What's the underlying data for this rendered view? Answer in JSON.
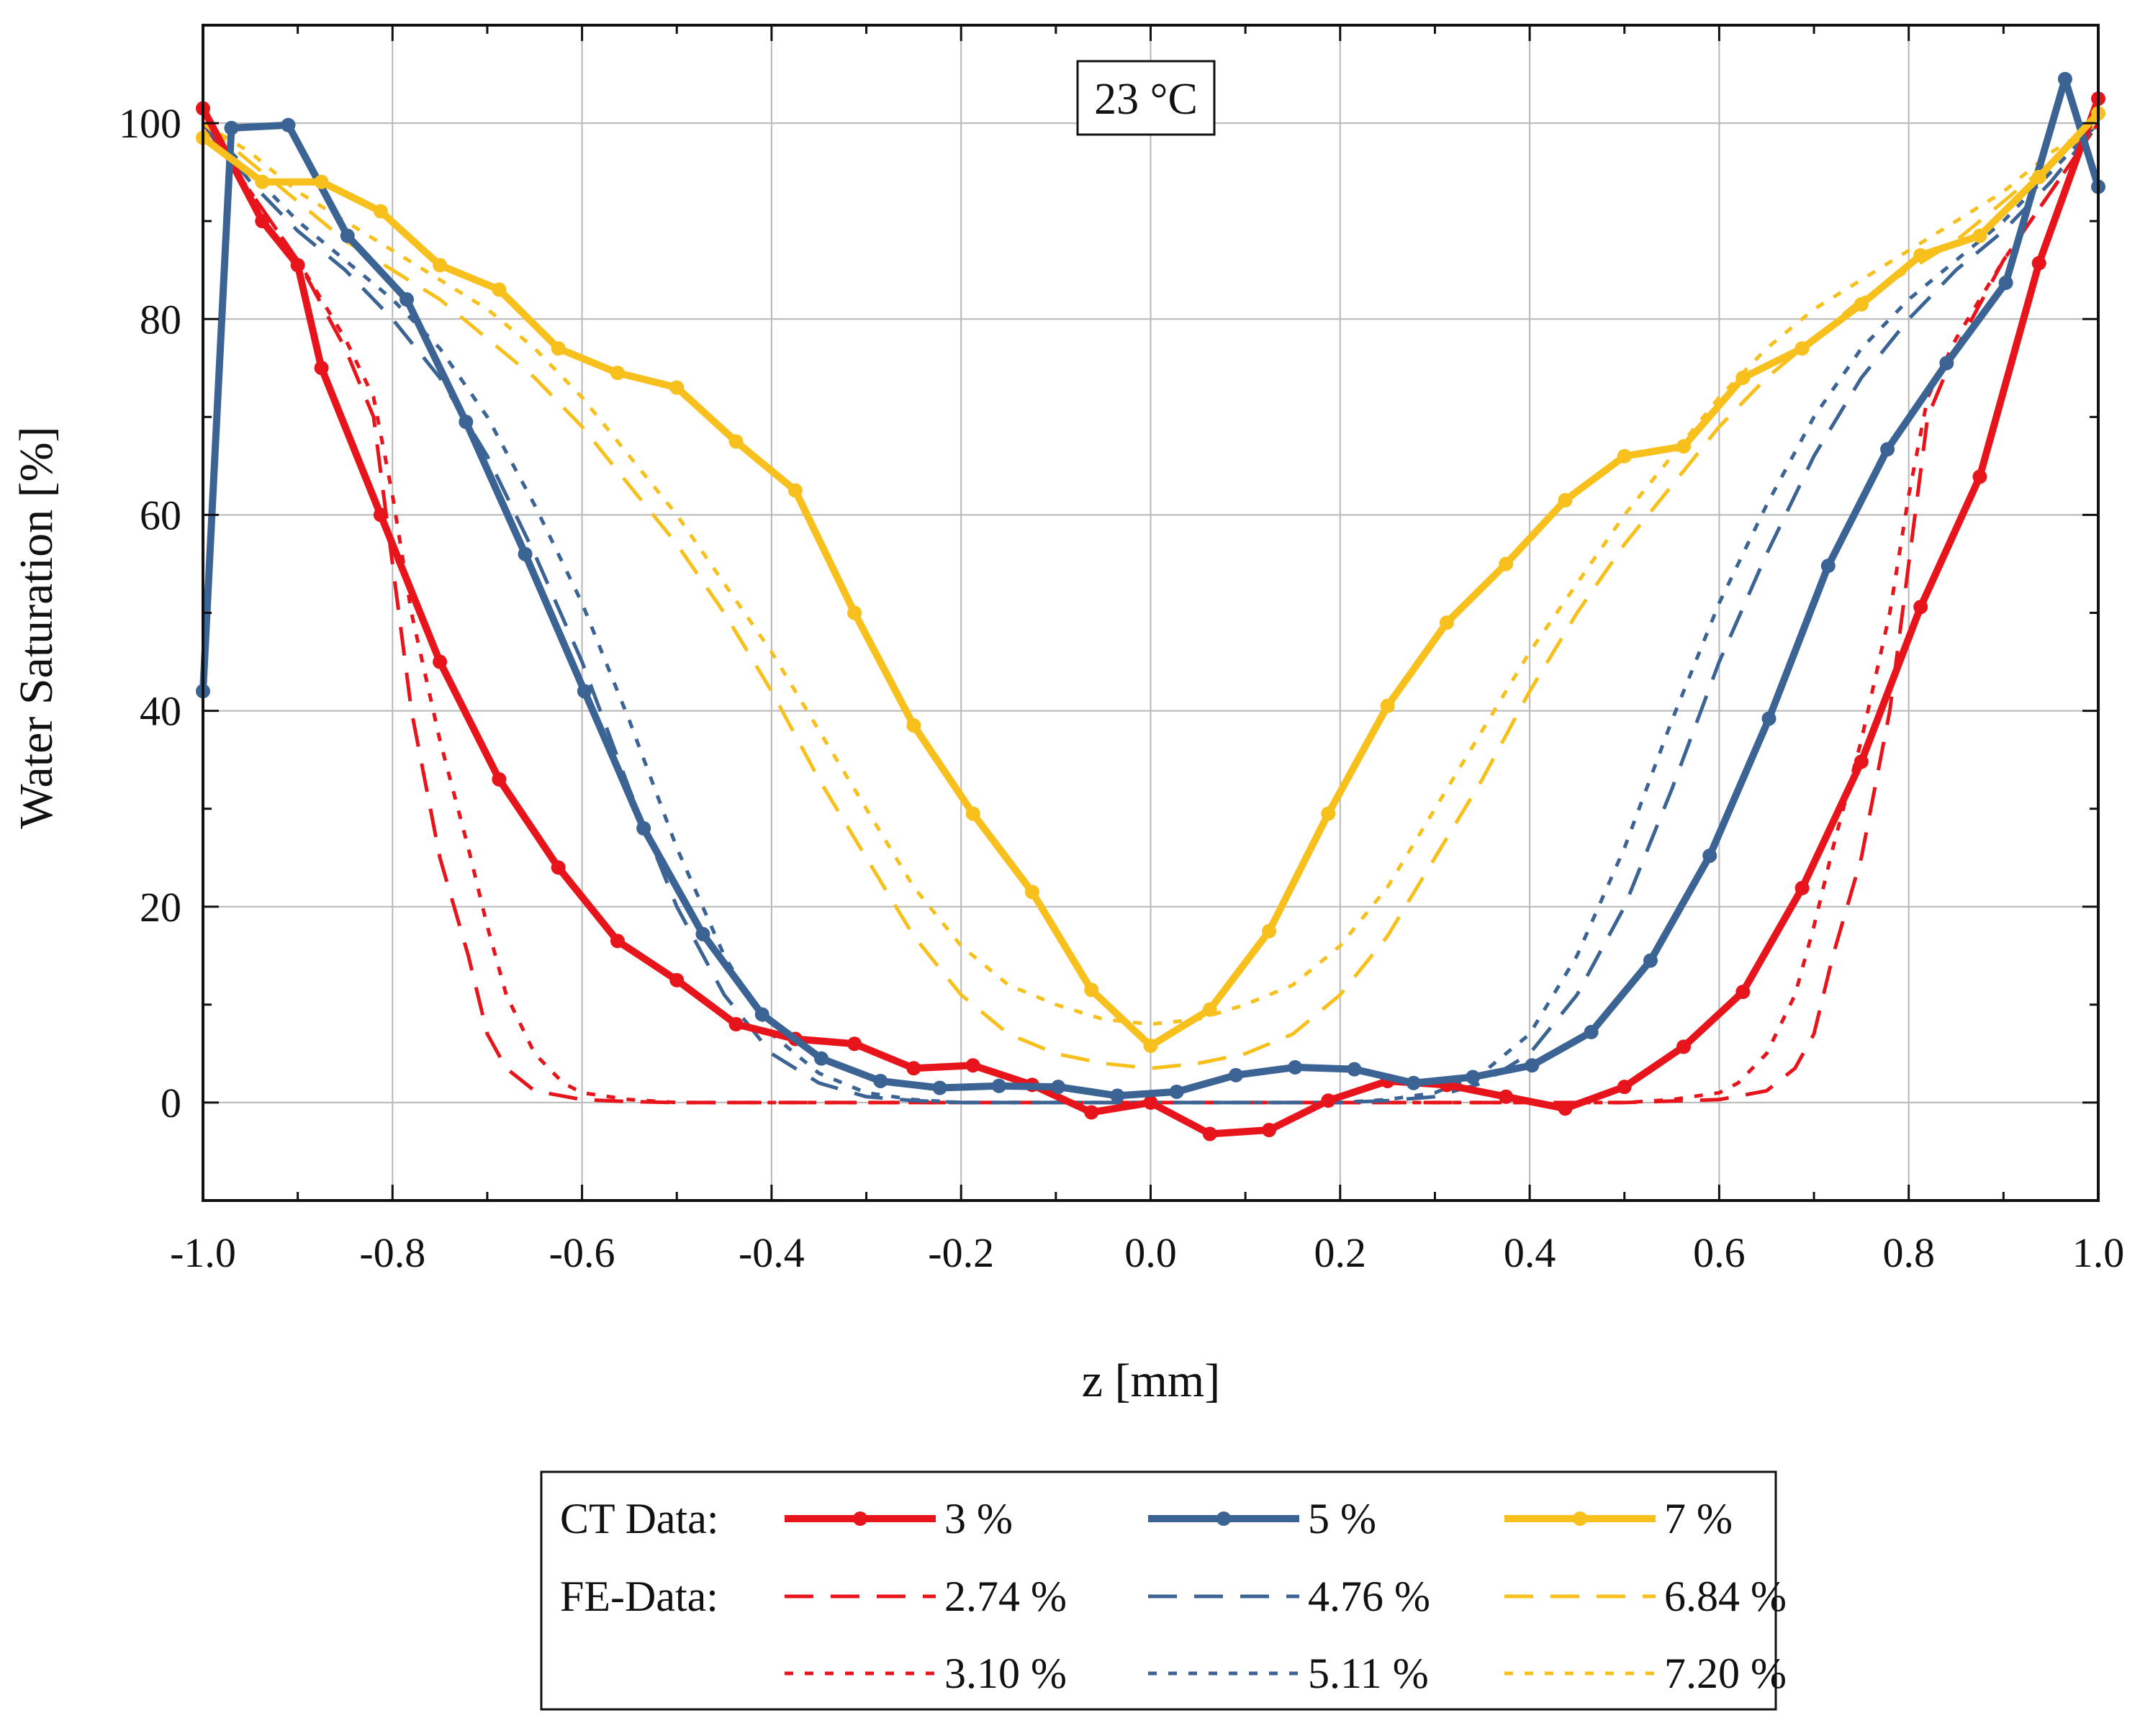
{
  "chart_data": {
    "type": "line",
    "title": "",
    "annotation": "23 °C",
    "xlabel": "z [mm]",
    "ylabel": "Water Saturation [%]",
    "xlim": [
      -1.0,
      1.0
    ],
    "ylim": [
      -10,
      110
    ],
    "xticks": [
      -1.0,
      -0.8,
      -0.6,
      -0.4,
      -0.2,
      0.0,
      0.2,
      0.4,
      0.6,
      0.8,
      1.0
    ],
    "xtick_labels": [
      "-1.0",
      "-0.8",
      "-0.6",
      "-0.4",
      "-0.2",
      "0.0",
      "0.2",
      "0.4",
      "0.6",
      "0.8",
      "1.0"
    ],
    "yticks": [
      0,
      20,
      40,
      60,
      80,
      100
    ],
    "ytick_labels": [
      "0",
      "20",
      "40",
      "60",
      "80",
      "100"
    ],
    "grid": true,
    "legend": {
      "position": "bottom",
      "group_labels": {
        "ct": "CT Data:",
        "fe": "FE-Data:"
      }
    },
    "colors": {
      "red": "#e8141c",
      "blue": "#3b6495",
      "yellow": "#f7c01c"
    },
    "series": [
      {
        "name": "3 %",
        "group": "ct",
        "style": "solid-marker",
        "color": "#e8141c",
        "x": [
          -1.0,
          -0.9375,
          -0.9,
          -0.875,
          -0.8125,
          -0.75,
          -0.6875,
          -0.625,
          -0.5625,
          -0.5,
          -0.4375,
          -0.375,
          -0.3125,
          -0.25,
          -0.1875,
          -0.125,
          -0.0625,
          0.0,
          0.0625,
          0.125,
          0.1875,
          0.25,
          0.3125,
          0.375,
          0.4375,
          0.5,
          0.5625,
          0.625,
          0.6875,
          0.75,
          0.8125,
          0.875,
          0.9375,
          1.0
        ],
        "y": [
          101.5,
          90,
          85.5,
          75,
          60,
          45,
          33,
          24,
          16.5,
          12.5,
          8,
          6.5,
          6,
          3.5,
          3.8,
          1.8,
          -1,
          0,
          -3.2,
          -2.8,
          0.2,
          2.2,
          1.8,
          0.6,
          -0.6,
          1.6,
          5.7,
          11.3,
          21.9,
          34.8,
          50.6,
          63.9,
          85.7,
          102.5
        ]
      },
      {
        "name": "5 %",
        "group": "ct",
        "style": "solid-marker",
        "color": "#3b6495",
        "x": [
          -1.0,
          -0.97,
          -0.91,
          -0.8475,
          -0.785,
          -0.7225,
          -0.66,
          -0.5975,
          -0.535,
          -0.4725,
          -0.41,
          -0.3475,
          -0.285,
          -0.2225,
          -0.16,
          -0.0975,
          -0.035,
          0.0275,
          0.09,
          0.1525,
          0.215,
          0.2775,
          0.34,
          0.4025,
          0.465,
          0.5275,
          0.59,
          0.6525,
          0.715,
          0.7775,
          0.84,
          0.9025,
          0.965,
          1.0
        ],
        "y": [
          42,
          99.5,
          99.8,
          88.5,
          82,
          69.5,
          56,
          42,
          28,
          17.2,
          9,
          4.5,
          2.2,
          1.5,
          1.7,
          1.6,
          0.7,
          1.1,
          2.8,
          3.6,
          3.4,
          2,
          2.6,
          3.8,
          7.2,
          14.5,
          25.2,
          39.2,
          54.8,
          66.7,
          75.5,
          83.7,
          104.5,
          93.5
        ]
      },
      {
        "name": "7 %",
        "group": "ct",
        "style": "solid-marker",
        "color": "#f7c01c",
        "x": [
          -1.0,
          -0.9375,
          -0.875,
          -0.8125,
          -0.75,
          -0.6875,
          -0.625,
          -0.5625,
          -0.5,
          -0.4375,
          -0.375,
          -0.3125,
          -0.25,
          -0.1875,
          -0.125,
          -0.0625,
          0.0,
          0.0625,
          0.125,
          0.1875,
          0.25,
          0.3125,
          0.375,
          0.4375,
          0.5,
          0.5625,
          0.625,
          0.6875,
          0.75,
          0.8125,
          0.875,
          0.9375,
          1.0
        ],
        "y": [
          98.5,
          94,
          94,
          91,
          85.5,
          83,
          77,
          74.5,
          73,
          67.5,
          62.5,
          50,
          38.5,
          29.5,
          21.5,
          11.5,
          5.8,
          9.5,
          17.5,
          29.5,
          40.5,
          49,
          55,
          61.5,
          66,
          67,
          74,
          77,
          81.5,
          86.5,
          88.5,
          94.5,
          101
        ]
      },
      {
        "name": "2.74 %",
        "group": "fe",
        "style": "dashed",
        "color": "#e8141c",
        "x": [
          -1.0,
          -0.95,
          -0.9,
          -0.85,
          -0.82,
          -0.8,
          -0.78,
          -0.75,
          -0.72,
          -0.7,
          -0.68,
          -0.65,
          -0.6,
          -0.55,
          -0.5,
          -0.4,
          -0.3,
          -0.2,
          -0.1,
          0.0,
          0.1,
          0.2,
          0.3,
          0.4,
          0.5,
          0.6,
          0.65,
          0.68,
          0.7,
          0.72,
          0.75,
          0.78,
          0.8,
          0.82,
          0.85,
          0.9,
          0.95,
          1.0
        ],
        "y": [
          100,
          93,
          86,
          77,
          70,
          55,
          40,
          25,
          15,
          7,
          3.5,
          1.2,
          0.3,
          0.1,
          0,
          0,
          0,
          0,
          0,
          0,
          0,
          0,
          0,
          0,
          0,
          0.3,
          1.2,
          3.5,
          7,
          15,
          25,
          40,
          55,
          70,
          77,
          86,
          93,
          100
        ]
      },
      {
        "name": "3.10 %",
        "group": "fe",
        "style": "dotted",
        "color": "#e8141c",
        "x": [
          -1.0,
          -0.95,
          -0.9,
          -0.85,
          -0.82,
          -0.8,
          -0.78,
          -0.75,
          -0.72,
          -0.7,
          -0.68,
          -0.65,
          -0.62,
          -0.6,
          -0.55,
          -0.5,
          -0.4,
          -0.3,
          -0.2,
          -0.1,
          0.0,
          0.1,
          0.2,
          0.3,
          0.4,
          0.5,
          0.55,
          0.6,
          0.62,
          0.65,
          0.68,
          0.7,
          0.72,
          0.75,
          0.78,
          0.8,
          0.82,
          0.85,
          0.9,
          0.95,
          1.0
        ],
        "y": [
          100,
          93,
          86,
          78,
          72,
          62,
          50,
          37,
          26,
          18,
          11,
          5,
          2,
          1,
          0.3,
          0,
          0,
          0,
          0,
          0,
          0,
          0,
          0,
          0,
          0,
          0,
          0.3,
          1,
          2,
          5,
          11,
          18,
          26,
          37,
          50,
          62,
          72,
          78,
          86,
          93,
          100
        ]
      },
      {
        "name": "4.76 %",
        "group": "fe",
        "style": "dashed",
        "color": "#3b6495",
        "x": [
          -1.0,
          -0.95,
          -0.9,
          -0.85,
          -0.8,
          -0.75,
          -0.7,
          -0.65,
          -0.6,
          -0.55,
          -0.5,
          -0.45,
          -0.4,
          -0.35,
          -0.3,
          -0.25,
          -0.2,
          -0.1,
          0.0,
          0.1,
          0.2,
          0.25,
          0.3,
          0.35,
          0.4,
          0.45,
          0.5,
          0.55,
          0.6,
          0.65,
          0.7,
          0.75,
          0.8,
          0.85,
          0.9,
          0.95,
          1.0
        ],
        "y": [
          100,
          94,
          89,
          85,
          80,
          74,
          66,
          56,
          45,
          32,
          20,
          11,
          5,
          2,
          0.6,
          0.2,
          0,
          0,
          0,
          0,
          0,
          0.2,
          0.6,
          2,
          5,
          11,
          20,
          32,
          45,
          56,
          66,
          74,
          80,
          85,
          89,
          94,
          100
        ]
      },
      {
        "name": "5.11 %",
        "group": "fe",
        "style": "dotted",
        "color": "#3b6495",
        "x": [
          -1.0,
          -0.95,
          -0.9,
          -0.85,
          -0.8,
          -0.75,
          -0.7,
          -0.65,
          -0.6,
          -0.55,
          -0.5,
          -0.45,
          -0.4,
          -0.35,
          -0.3,
          -0.25,
          -0.2,
          -0.1,
          0.0,
          0.1,
          0.2,
          0.25,
          0.3,
          0.35,
          0.4,
          0.45,
          0.5,
          0.55,
          0.6,
          0.65,
          0.7,
          0.75,
          0.8,
          0.85,
          0.9,
          0.95,
          1.0
        ],
        "y": [
          100,
          95,
          90,
          86,
          82,
          77,
          70,
          61,
          51,
          39,
          26,
          15,
          7,
          3,
          1,
          0.3,
          0,
          0,
          0,
          0,
          0,
          0.3,
          1,
          3,
          7,
          15,
          26,
          39,
          51,
          61,
          70,
          77,
          82,
          86,
          90,
          95,
          100
        ]
      },
      {
        "name": "6.84 %",
        "group": "fe",
        "style": "dashed",
        "color": "#f7c01c",
        "x": [
          -1.0,
          -0.95,
          -0.9,
          -0.85,
          -0.8,
          -0.75,
          -0.7,
          -0.65,
          -0.6,
          -0.55,
          -0.5,
          -0.45,
          -0.4,
          -0.35,
          -0.3,
          -0.25,
          -0.2,
          -0.15,
          -0.1,
          -0.05,
          0.0,
          0.05,
          0.1,
          0.15,
          0.2,
          0.25,
          0.3,
          0.35,
          0.4,
          0.45,
          0.5,
          0.55,
          0.6,
          0.65,
          0.7,
          0.75,
          0.8,
          0.85,
          0.9,
          0.95,
          1.0
        ],
        "y": [
          100,
          96,
          92,
          88,
          85,
          82,
          78,
          74,
          69,
          63,
          57,
          50,
          42,
          33,
          25,
          17,
          11,
          7,
          5,
          4,
          3.5,
          4,
          5,
          7,
          11,
          17,
          25,
          33,
          42,
          50,
          57,
          63,
          69,
          74,
          78,
          82,
          85,
          88,
          92,
          96,
          100
        ]
      },
      {
        "name": "7.20 %",
        "group": "fe",
        "style": "dotted",
        "color": "#f7c01c",
        "x": [
          -1.0,
          -0.95,
          -0.9,
          -0.85,
          -0.8,
          -0.75,
          -0.7,
          -0.65,
          -0.6,
          -0.55,
          -0.5,
          -0.45,
          -0.4,
          -0.35,
          -0.3,
          -0.25,
          -0.2,
          -0.15,
          -0.1,
          -0.05,
          0.0,
          0.05,
          0.1,
          0.15,
          0.2,
          0.25,
          0.3,
          0.35,
          0.4,
          0.45,
          0.5,
          0.55,
          0.6,
          0.65,
          0.7,
          0.75,
          0.8,
          0.85,
          0.9,
          0.95,
          1.0
        ],
        "y": [
          100,
          97,
          93,
          90,
          87,
          84,
          81,
          77,
          72,
          66,
          60,
          53,
          46,
          38,
          30,
          22,
          16,
          12,
          10,
          8.5,
          8,
          8.5,
          10,
          12,
          16,
          22,
          30,
          38,
          46,
          53,
          60,
          66,
          72,
          77,
          81,
          84,
          87,
          90,
          93,
          97,
          100
        ]
      }
    ]
  }
}
